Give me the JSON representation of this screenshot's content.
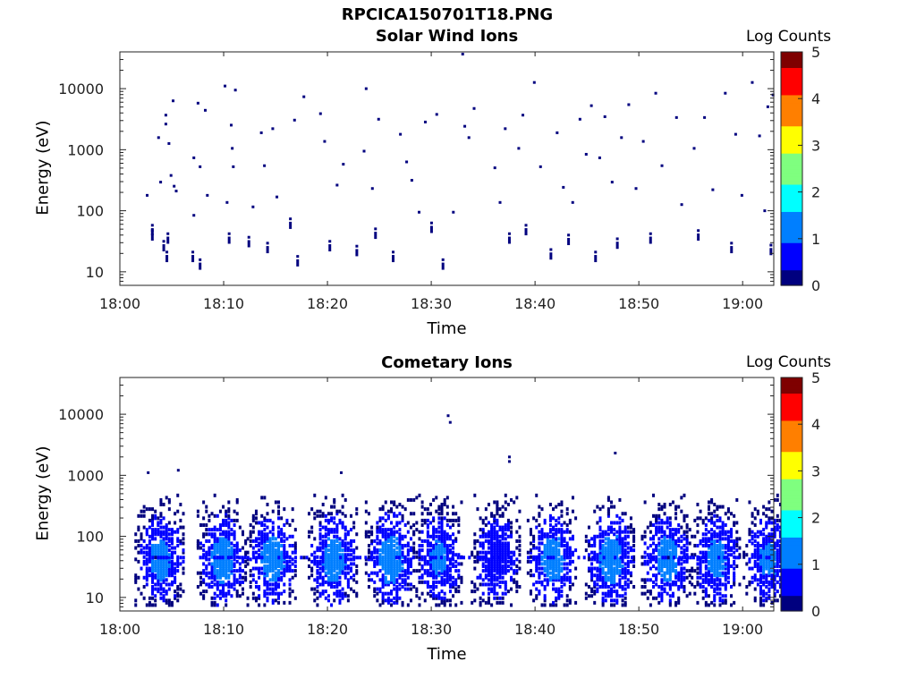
{
  "figure_title": "RPCICA150701T18.PNG",
  "panels": [
    {
      "title": "Solar Wind Ions",
      "ylabel": "Energy (eV)",
      "xlabel": "Time",
      "colorbar_label": "Log Counts"
    },
    {
      "title": "Cometary Ions",
      "ylabel": "Energy (eV)",
      "xlabel": "Time",
      "colorbar_label": "Log Counts"
    }
  ],
  "x_ticks": [
    "18:00",
    "18:10",
    "18:20",
    "18:30",
    "18:40",
    "18:50",
    "19:00"
  ],
  "y_ticks": [
    "10",
    "100",
    "1000",
    "10000"
  ],
  "colorbar_ticks": [
    "0",
    "1",
    "2",
    "3",
    "4",
    "5"
  ],
  "colors": {
    "colormap": [
      "#00007f",
      "#0000ff",
      "#007fff",
      "#00ffff",
      "#7fff7f",
      "#ffff00",
      "#ff7f00",
      "#ff0000",
      "#7f0000"
    ]
  },
  "chart_data": [
    {
      "type": "heatmap",
      "title": "Solar Wind Ions",
      "xlabel": "Time",
      "ylabel": "Energy (eV)",
      "yscale": "log",
      "xlim": [
        "18:00",
        "19:03"
      ],
      "ylim": [
        6,
        40000
      ],
      "clim": [
        0,
        5
      ],
      "colorbar_label": "Log Counts",
      "description_of_values": "sparse single-count detections (log counts ≈ 0) spread across 10 eV – 10000 eV",
      "points": [
        {
          "t": 2.5,
          "e": 170,
          "c": 0.1
        },
        {
          "t": 3.0,
          "e": 55,
          "c": 0.1
        },
        {
          "t": 3.0,
          "e": 45,
          "c": 0.1
        },
        {
          "t": 3.6,
          "e": 1500,
          "c": 0.1
        },
        {
          "t": 3.8,
          "e": 280,
          "c": 0.1
        },
        {
          "t": 4.1,
          "e": 30,
          "c": 0.1
        },
        {
          "t": 4.3,
          "e": 3500,
          "c": 0.1
        },
        {
          "t": 4.3,
          "e": 2500,
          "c": 0.1
        },
        {
          "t": 4.4,
          "e": 20,
          "c": 0.1
        },
        {
          "t": 4.5,
          "e": 40,
          "c": 0.1
        },
        {
          "t": 4.6,
          "e": 1200,
          "c": 0.1
        },
        {
          "t": 4.8,
          "e": 360,
          "c": 0.1
        },
        {
          "t": 5.0,
          "e": 6000,
          "c": 0.1
        },
        {
          "t": 5.1,
          "e": 240,
          "c": 0.1
        },
        {
          "t": 5.3,
          "e": 200,
          "c": 0.1
        },
        {
          "t": 6.9,
          "e": 20,
          "c": 0.1
        },
        {
          "t": 7.0,
          "e": 700,
          "c": 0.1
        },
        {
          "t": 7.0,
          "e": 80,
          "c": 0.1
        },
        {
          "t": 7.4,
          "e": 5500,
          "c": 0.1
        },
        {
          "t": 7.6,
          "e": 15,
          "c": 0.1
        },
        {
          "t": 7.6,
          "e": 500,
          "c": 0.1
        },
        {
          "t": 8.1,
          "e": 4200,
          "c": 0.1
        },
        {
          "t": 8.3,
          "e": 170,
          "c": 0.1
        },
        {
          "t": 10.0,
          "e": 10500,
          "c": 0.1
        },
        {
          "t": 10.2,
          "e": 130,
          "c": 0.1
        },
        {
          "t": 10.4,
          "e": 40,
          "c": 0.1
        },
        {
          "t": 10.6,
          "e": 2400,
          "c": 0.1
        },
        {
          "t": 10.7,
          "e": 1000,
          "c": 0.1
        },
        {
          "t": 10.8,
          "e": 500,
          "c": 0.1
        },
        {
          "t": 11.0,
          "e": 9000,
          "c": 0.1
        },
        {
          "t": 12.3,
          "e": 35,
          "c": 0.1
        },
        {
          "t": 12.7,
          "e": 110,
          "c": 0.1
        },
        {
          "t": 13.5,
          "e": 1800,
          "c": 0.1
        },
        {
          "t": 13.8,
          "e": 520,
          "c": 0.1
        },
        {
          "t": 14.1,
          "e": 28,
          "c": 0.1
        },
        {
          "t": 14.6,
          "e": 2100,
          "c": 0.1
        },
        {
          "t": 15.0,
          "e": 160,
          "c": 0.1
        },
        {
          "t": 16.3,
          "e": 70,
          "c": 0.1
        },
        {
          "t": 16.7,
          "e": 2900,
          "c": 0.1
        },
        {
          "t": 17.0,
          "e": 17,
          "c": 0.1
        },
        {
          "t": 17.6,
          "e": 7000,
          "c": 0.1
        },
        {
          "t": 19.2,
          "e": 3700,
          "c": 0.1
        },
        {
          "t": 19.6,
          "e": 1300,
          "c": 0.1
        },
        {
          "t": 20.1,
          "e": 30,
          "c": 0.1
        },
        {
          "t": 20.8,
          "e": 250,
          "c": 0.1
        },
        {
          "t": 21.4,
          "e": 550,
          "c": 0.1
        },
        {
          "t": 22.7,
          "e": 25,
          "c": 0.1
        },
        {
          "t": 23.4,
          "e": 900,
          "c": 0.1
        },
        {
          "t": 23.6,
          "e": 9500,
          "c": 0.1
        },
        {
          "t": 24.2,
          "e": 220,
          "c": 0.1
        },
        {
          "t": 24.5,
          "e": 48,
          "c": 0.1
        },
        {
          "t": 24.8,
          "e": 3000,
          "c": 0.1
        },
        {
          "t": 26.2,
          "e": 20,
          "c": 0.1
        },
        {
          "t": 26.9,
          "e": 1700,
          "c": 0.1
        },
        {
          "t": 27.5,
          "e": 600,
          "c": 0.1
        },
        {
          "t": 28.0,
          "e": 300,
          "c": 0.1
        },
        {
          "t": 28.7,
          "e": 90,
          "c": 0.1
        },
        {
          "t": 29.3,
          "e": 2700,
          "c": 0.1
        },
        {
          "t": 29.9,
          "e": 60,
          "c": 0.1
        },
        {
          "t": 30.4,
          "e": 3600,
          "c": 0.1
        },
        {
          "t": 31.0,
          "e": 15,
          "c": 0.1
        },
        {
          "t": 32.0,
          "e": 90,
          "c": 0.1
        },
        {
          "t": 32.9,
          "e": 35000,
          "c": 0.1
        },
        {
          "t": 33.1,
          "e": 2300,
          "c": 0.1
        },
        {
          "t": 33.5,
          "e": 1500,
          "c": 0.1
        },
        {
          "t": 34.0,
          "e": 4500,
          "c": 0.1
        },
        {
          "t": 36.0,
          "e": 480,
          "c": 0.1
        },
        {
          "t": 36.5,
          "e": 130,
          "c": 0.1
        },
        {
          "t": 37.0,
          "e": 2100,
          "c": 0.1
        },
        {
          "t": 37.4,
          "e": 40,
          "c": 0.1
        },
        {
          "t": 38.3,
          "e": 1000,
          "c": 0.1
        },
        {
          "t": 38.7,
          "e": 3500,
          "c": 0.1
        },
        {
          "t": 39.0,
          "e": 55,
          "c": 0.1
        },
        {
          "t": 39.8,
          "e": 12000,
          "c": 0.1
        },
        {
          "t": 40.4,
          "e": 500,
          "c": 0.1
        },
        {
          "t": 41.4,
          "e": 22,
          "c": 0.1
        },
        {
          "t": 42.0,
          "e": 1800,
          "c": 0.1
        },
        {
          "t": 42.6,
          "e": 230,
          "c": 0.1
        },
        {
          "t": 43.1,
          "e": 38,
          "c": 0.1
        },
        {
          "t": 43.5,
          "e": 130,
          "c": 0.1
        },
        {
          "t": 44.2,
          "e": 3000,
          "c": 0.1
        },
        {
          "t": 44.8,
          "e": 800,
          "c": 0.1
        },
        {
          "t": 45.3,
          "e": 5000,
          "c": 0.1
        },
        {
          "t": 45.7,
          "e": 20,
          "c": 0.1
        },
        {
          "t": 46.1,
          "e": 700,
          "c": 0.1
        },
        {
          "t": 46.6,
          "e": 3300,
          "c": 0.1
        },
        {
          "t": 47.3,
          "e": 280,
          "c": 0.1
        },
        {
          "t": 47.8,
          "e": 33,
          "c": 0.1
        },
        {
          "t": 48.2,
          "e": 1500,
          "c": 0.1
        },
        {
          "t": 48.9,
          "e": 5200,
          "c": 0.1
        },
        {
          "t": 49.6,
          "e": 220,
          "c": 0.1
        },
        {
          "t": 50.3,
          "e": 1300,
          "c": 0.1
        },
        {
          "t": 51.0,
          "e": 40,
          "c": 0.1
        },
        {
          "t": 51.5,
          "e": 8000,
          "c": 0.1
        },
        {
          "t": 52.1,
          "e": 520,
          "c": 0.1
        },
        {
          "t": 53.5,
          "e": 3200,
          "c": 0.1
        },
        {
          "t": 54.0,
          "e": 120,
          "c": 0.1
        },
        {
          "t": 55.2,
          "e": 1000,
          "c": 0.1
        },
        {
          "t": 55.6,
          "e": 45,
          "c": 0.1
        },
        {
          "t": 56.2,
          "e": 3200,
          "c": 0.1
        },
        {
          "t": 57.0,
          "e": 210,
          "c": 0.1
        },
        {
          "t": 58.2,
          "e": 8000,
          "c": 0.1
        },
        {
          "t": 58.8,
          "e": 28,
          "c": 0.1
        },
        {
          "t": 59.2,
          "e": 1700,
          "c": 0.1
        },
        {
          "t": 59.8,
          "e": 170,
          "c": 0.1
        },
        {
          "t": 60.8,
          "e": 12000,
          "c": 0.1
        },
        {
          "t": 61.5,
          "e": 1600,
          "c": 0.1
        },
        {
          "t": 62.0,
          "e": 95,
          "c": 0.1
        },
        {
          "t": 62.3,
          "e": 4800,
          "c": 0.1
        },
        {
          "t": 62.6,
          "e": 26,
          "c": 0.1
        },
        {
          "t": 62.8,
          "e": 7500,
          "c": 0.1
        }
      ]
    },
    {
      "type": "heatmap",
      "title": "Cometary Ions",
      "xlabel": "Time",
      "ylabel": "Energy (eV)",
      "yscale": "log",
      "xlim": [
        "18:00",
        "19:03"
      ],
      "ylim": [
        6,
        40000
      ],
      "clim": [
        0,
        5
      ],
      "colorbar_label": "Log Counts",
      "description_of_values": "recurring bursts roughly every 5.5 minutes between ~7 eV and ~400 eV, peak log counts ~1.3 near 40 eV; sparse high-energy points near 18:31 (~8000 eV), 18:37 (~1700 eV), 18:47 (~2200 eV)",
      "bursts": [
        {
          "t": 3.8,
          "peak": 1.1
        },
        {
          "t": 9.8,
          "peak": 1.2
        },
        {
          "t": 14.6,
          "peak": 1.25
        },
        {
          "t": 20.5,
          "peak": 1.2
        },
        {
          "t": 26.0,
          "peak": 1.3
        },
        {
          "t": 30.6,
          "peak": 1.0
        },
        {
          "t": 36.2,
          "peak": 0.9
        },
        {
          "t": 41.6,
          "peak": 1.2
        },
        {
          "t": 47.2,
          "peak": 1.3
        },
        {
          "t": 52.6,
          "peak": 1.2
        },
        {
          "t": 57.4,
          "peak": 1.1
        },
        {
          "t": 62.4,
          "peak": 1.0
        }
      ],
      "points": [
        {
          "t": 2.6,
          "e": 1050,
          "c": 0.1
        },
        {
          "t": 5.5,
          "e": 1150,
          "c": 0.1
        },
        {
          "t": 21.2,
          "e": 1050,
          "c": 0.1
        },
        {
          "t": 31.5,
          "e": 9000,
          "c": 0.2
        },
        {
          "t": 31.7,
          "e": 7000,
          "c": 0.2
        },
        {
          "t": 37.4,
          "e": 1900,
          "c": 0.2
        },
        {
          "t": 37.4,
          "e": 1600,
          "c": 0.2
        },
        {
          "t": 47.6,
          "e": 2200,
          "c": 0.2
        }
      ]
    }
  ]
}
